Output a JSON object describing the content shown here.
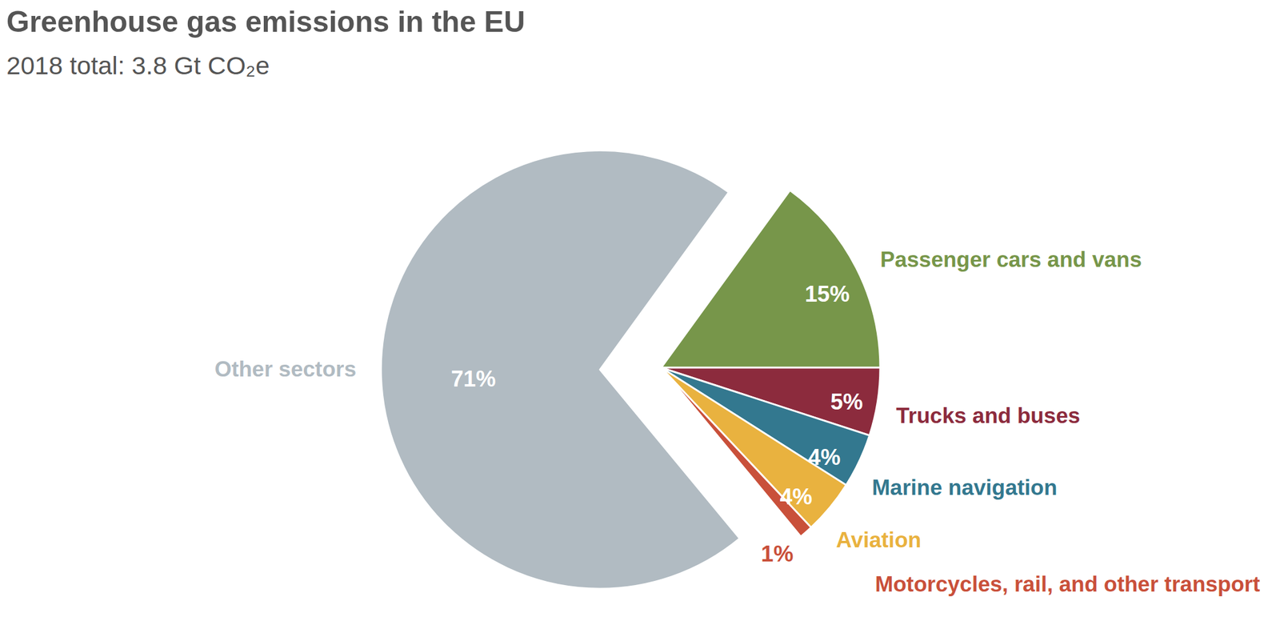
{
  "chart_data": {
    "type": "pie",
    "title": "Greenhouse gas emissions in the EU",
    "subtitle": "2018 total: 3.8 Gt CO₂e",
    "categories": [
      "Passenger cars and vans",
      "Trucks and buses",
      "Marine navigation",
      "Aviation",
      "Motorcycles, rail, and other transport",
      "Other sectors"
    ],
    "values": [
      15,
      5,
      4,
      4,
      1,
      71
    ],
    "value_labels": [
      "15%",
      "5%",
      "4%",
      "4%",
      "1%",
      "71%"
    ],
    "colors": [
      "#77964a",
      "#8c2b3d",
      "#33788f",
      "#e9b23f",
      "#c9503a",
      "#b1bbc2"
    ],
    "data_labels": true
  }
}
